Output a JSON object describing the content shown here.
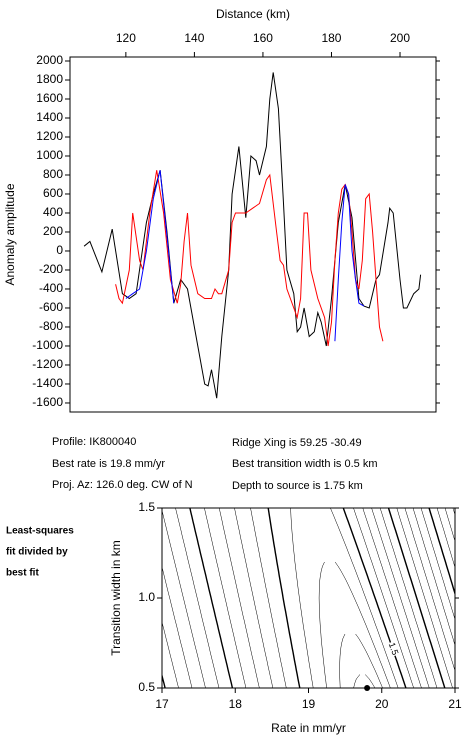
{
  "chart_data": [
    {
      "type": "line",
      "x_label": "Distance (km)",
      "y_label": "Anomaly amplitude",
      "xlim": [
        103.7,
        210.5
      ],
      "ylim": [
        -1695,
        2042
      ],
      "xticks": [
        120,
        140,
        160,
        180,
        200
      ],
      "yticks": [
        -1600,
        -1400,
        -1200,
        -1000,
        -800,
        -600,
        -400,
        -200,
        0,
        200,
        400,
        600,
        800,
        1000,
        1200,
        1400,
        1600,
        1800,
        2000
      ],
      "series": [
        {
          "color": "#000000",
          "x": [
            107.8,
            109.5,
            113,
            116,
            119,
            121,
            123,
            126,
            128,
            130,
            132,
            134,
            136,
            138,
            141,
            143,
            144,
            145,
            146.5,
            148,
            150,
            151,
            153,
            155,
            156.5,
            158,
            159,
            161,
            162,
            163,
            164.5,
            166,
            167,
            169,
            170,
            171,
            172,
            173.5,
            175,
            176,
            177,
            178.5,
            180,
            182,
            184,
            186,
            188,
            189.5,
            191,
            193,
            194,
            196.5,
            197,
            198,
            200,
            201,
            202,
            204,
            205.5,
            206
          ],
          "values": [
            50,
            100,
            -220,
            230,
            -450,
            -500,
            -450,
            300,
            600,
            850,
            200,
            -550,
            -300,
            -400,
            -1000,
            -1400,
            -1420,
            -1250,
            -1550,
            -900,
            -200,
            600,
            1100,
            350,
            1000,
            950,
            800,
            1100,
            1600,
            1880,
            1500,
            500,
            -200,
            -450,
            -850,
            -800,
            -600,
            -900,
            -850,
            -650,
            -750,
            -1000,
            -500,
            300,
            700,
            350,
            -500,
            -580,
            -600,
            -300,
            -250,
            300,
            450,
            400,
            -300,
            -600,
            -600,
            -450,
            -400,
            -250
          ]
        },
        {
          "color": "#ff0000",
          "x": [
            117,
            118,
            119,
            121,
            122,
            124,
            125,
            127,
            129,
            131,
            133,
            135,
            136,
            137,
            138,
            139,
            140,
            141,
            143,
            145,
            146,
            147,
            148,
            150,
            151,
            152,
            155,
            157,
            159,
            161,
            162,
            164,
            165,
            166,
            167,
            169,
            170,
            171,
            172,
            173,
            174,
            176,
            178,
            179,
            180,
            181,
            182,
            183,
            184,
            185,
            186,
            187,
            188,
            189,
            190,
            191,
            192,
            193,
            194,
            195
          ],
          "values": [
            -350,
            -500,
            -550,
            -200,
            400,
            -100,
            -200,
            400,
            850,
            400,
            -300,
            -550,
            -350,
            100,
            400,
            -150,
            -300,
            -450,
            -500,
            -500,
            -400,
            -450,
            -450,
            -200,
            300,
            400,
            400,
            450,
            500,
            750,
            800,
            200,
            -100,
            -150,
            -400,
            -600,
            -700,
            -500,
            400,
            400,
            -200,
            -500,
            -700,
            -1000,
            -750,
            -100,
            400,
            650,
            700,
            600,
            200,
            -300,
            -400,
            -100,
            550,
            600,
            200,
            -300,
            -800,
            -950
          ]
        },
        {
          "color": "#0000ff",
          "x": [
            120,
            122,
            124,
            126,
            128,
            130,
            132,
            134,
            null,
            181,
            182,
            183,
            184,
            185,
            186,
            187,
            188,
            189.5
          ],
          "values": [
            -500,
            -450,
            -400,
            0,
            550,
            850,
            150,
            -550,
            null,
            -950,
            -300,
            300,
            700,
            600,
            0,
            -300,
            -550,
            -580
          ]
        }
      ]
    },
    {
      "type": "contour",
      "x_label": "Rate in mm/yr",
      "y_label": "Transition width in km",
      "xlim": [
        17,
        21
      ],
      "ylim": [
        0.5,
        1.5
      ],
      "xticks": [
        17,
        18,
        19,
        20,
        21
      ],
      "yticks": [
        {
          "value": 0.5,
          "label": "0.5"
        },
        {
          "value": 1.0,
          "label": "1.0"
        },
        {
          "value": 1.5,
          "label": "1.5"
        }
      ],
      "best_fit": {
        "x": 19.8,
        "y": 0.5
      },
      "contour_label": "1.5"
    }
  ],
  "info": {
    "profile": "Profile: IK800040",
    "best_rate": "Best rate is 19.8 mm/yr",
    "proj_az": "Proj. Az: 126.0 deg. CW of N",
    "ridge_xing": "Ridge Xing is 59.25 -30.49",
    "transition": "Best transition width is 0.5 km",
    "depth": "Depth to source is   1.75 km"
  },
  "note": [
    "Least-squares",
    "fit divided by",
    "best fit"
  ]
}
